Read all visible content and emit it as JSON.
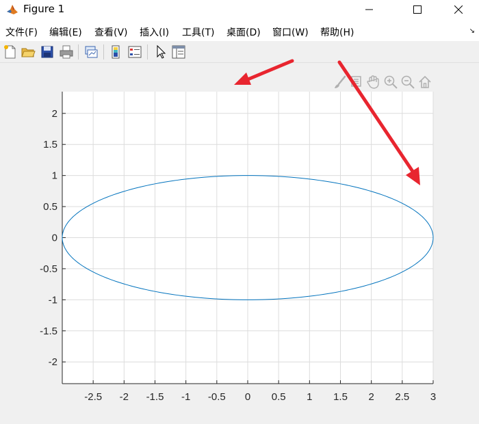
{
  "window": {
    "title": "Figure 1",
    "icon": "matlab-icon",
    "controls": [
      "minimize-icon",
      "maximize-icon",
      "close-icon"
    ]
  },
  "menu": {
    "items": [
      {
        "label": "文件(F)"
      },
      {
        "label": "编辑(E)"
      },
      {
        "label": "查看(V)"
      },
      {
        "label": "插入(I)"
      },
      {
        "label": "工具(T)"
      },
      {
        "label": "桌面(D)"
      },
      {
        "label": "窗口(W)"
      },
      {
        "label": "帮助(H)"
      }
    ],
    "dock_arrow": "↘"
  },
  "toolbar": {
    "icons": [
      "new-figure-icon",
      "open-file-icon",
      "save-icon",
      "print-icon",
      "link-plot-icon",
      "insert-colorbar-icon",
      "insert-legend-icon",
      "edit-plot-icon",
      "property-inspector-icon"
    ]
  },
  "axes_toolbar": {
    "icons": [
      "brush-icon",
      "data-tips-icon",
      "pan-icon",
      "zoom-in-icon",
      "zoom-out-icon",
      "home-icon"
    ]
  },
  "colors": {
    "curve": "#0072bd",
    "grid": "#dcdcdc",
    "axis": "#262626",
    "annotation_arrow": "#e8252f"
  },
  "chart_data": {
    "type": "line",
    "title": "",
    "xlabel": "",
    "ylabel": "",
    "xlim": [
      -3,
      3
    ],
    "ylim": [
      -2.35,
      2.35
    ],
    "grid": true,
    "xticks": [
      -2.5,
      -2,
      -1.5,
      -1,
      -0.5,
      0,
      0.5,
      1,
      1.5,
      2,
      2.5,
      3
    ],
    "xtick_labels": [
      "-2.5",
      "-2",
      "-1.5",
      "-1",
      "-0.5",
      "0",
      "0.5",
      "1",
      "1.5",
      "2",
      "2.5",
      "3"
    ],
    "yticks": [
      2,
      1.5,
      1,
      0.5,
      0,
      -0.5,
      -1,
      -1.5,
      -2
    ],
    "ytick_labels": [
      "2",
      "1.5",
      "1",
      "0.5",
      "0",
      "-0.5",
      "-1",
      "-1.5",
      "-2"
    ],
    "series": [
      {
        "shape": "ellipse",
        "center": [
          0,
          0
        ],
        "semi_axis_x": 3,
        "semi_axis_y": 1
      }
    ]
  }
}
